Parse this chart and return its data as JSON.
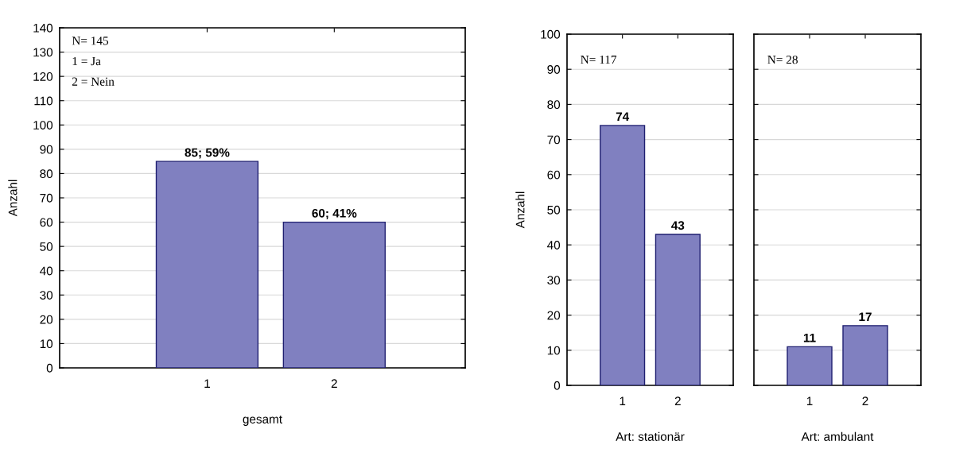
{
  "chart_data": [
    {
      "type": "bar",
      "categories": [
        "1",
        "2"
      ],
      "values": [
        85,
        60
      ],
      "color": "#8080c0",
      "value_labels": [
        "85; 59%",
        "60; 41%"
      ],
      "xlabel": "gesamt",
      "ylabel": "Anzahl",
      "ylim": [
        0,
        140
      ],
      "yticks": [
        0,
        10,
        20,
        30,
        40,
        50,
        60,
        70,
        80,
        90,
        100,
        110,
        120,
        130,
        140
      ],
      "grid": "y",
      "annotations": [
        "N= 145",
        "1 = Ja",
        "2 = Nein"
      ]
    },
    {
      "type": "bar",
      "categories": [
        "1",
        "2"
      ],
      "values": [
        74,
        43
      ],
      "color": "#8080c0",
      "data_labels": true,
      "xlabel": "Art: stationär",
      "ylabel": "Anzahl",
      "ylim": [
        0,
        100
      ],
      "yticks": [
        0,
        10,
        20,
        30,
        40,
        50,
        60,
        70,
        80,
        90,
        100
      ],
      "grid": "y",
      "annotations": [
        "N= 117"
      ]
    },
    {
      "type": "bar",
      "categories": [
        "1",
        "2"
      ],
      "values": [
        11,
        17
      ],
      "color": "#8080c0",
      "data_labels": true,
      "xlabel": "Art: ambulant",
      "ylim": [
        0,
        100
      ],
      "yticks": [
        0,
        10,
        20,
        30,
        40,
        50,
        60,
        70,
        80,
        90,
        100
      ],
      "grid": "y",
      "tick_labels": "x",
      "annotations": [
        "N= 28"
      ]
    }
  ]
}
